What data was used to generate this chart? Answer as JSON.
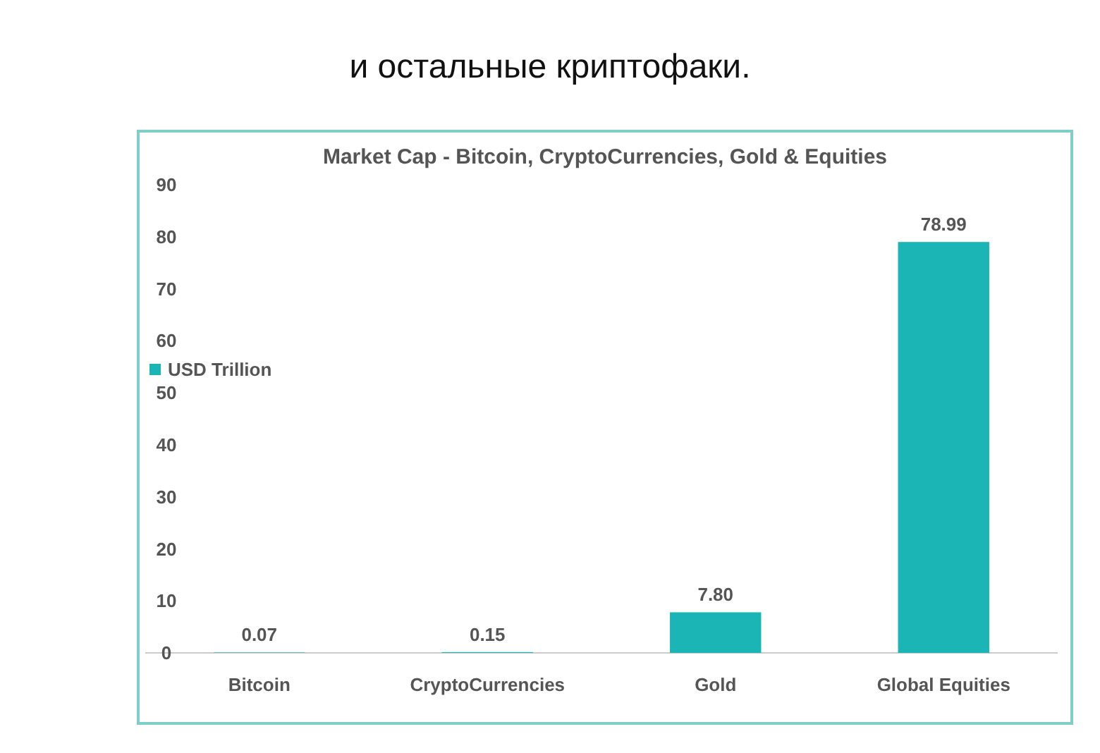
{
  "chart_data": {
    "type": "bar",
    "title": "и остальные криптофаки.",
    "subtitle": "Market Cap - Bitcoin, CryptoCurrencies, Gold & Equities",
    "categories": [
      "Bitcoin",
      "CryptoCurrencies",
      "Gold",
      "Global Equities"
    ],
    "series": [
      {
        "name": "USD Trillion",
        "color": "#1bb5b5",
        "values": [
          0.07,
          0.15,
          7.8,
          78.99
        ]
      }
    ],
    "value_labels": [
      "0.07",
      "0.15",
      "7.80",
      "78.99"
    ],
    "ylim": [
      0,
      90
    ],
    "yticks": [
      0,
      10,
      20,
      30,
      40,
      50,
      60,
      70,
      80,
      90
    ],
    "grid": false,
    "legend": "left"
  }
}
